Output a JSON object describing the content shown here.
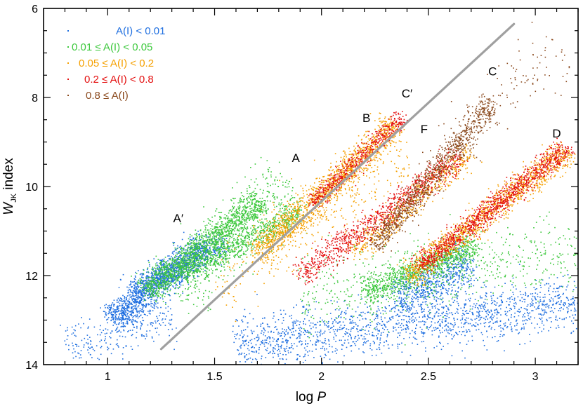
{
  "chart_data": {
    "type": "scatter",
    "title": "",
    "xlabel": "log P",
    "xlabel_main": "log",
    "xlabel_var": "P",
    "ylabel": "W_JK index",
    "ylabel_main": "W",
    "ylabel_sub": "JK",
    "ylabel_suffix": " index",
    "xlim": [
      0.7,
      3.2
    ],
    "ylim": [
      14,
      6
    ],
    "y_inverted": true,
    "x_ticks": [
      1,
      1.5,
      2,
      2.5,
      3
    ],
    "x_tick_labels": [
      "1",
      "1.5",
      "2",
      "2.5",
      "3"
    ],
    "y_ticks": [
      6,
      8,
      10,
      12,
      14
    ],
    "y_tick_labels": [
      "6",
      "8",
      "10",
      "12",
      "14"
    ],
    "legend_position": "top-left",
    "series": [
      {
        "name": "A(I) < 0.01",
        "color": "#1f6fe0"
      },
      {
        "name": "0.01 ≤ A(I) < 0.05",
        "color": "#3cc83c"
      },
      {
        "name": "0.05 ≤ A(I) < 0.2",
        "color": "#f5a000"
      },
      {
        "name": "0.2 ≤ A(I) < 0.8",
        "color": "#e41010"
      },
      {
        "name": "0.8 ≤ A(I)",
        "color": "#8b4a1e"
      }
    ],
    "sequences": [
      {
        "label": "A′",
        "x": 1.33,
        "y": 10.8
      },
      {
        "label": "A",
        "x": 1.88,
        "y": 9.45
      },
      {
        "label": "B",
        "x": 2.21,
        "y": 8.55
      },
      {
        "label": "C′",
        "x": 2.4,
        "y": 8.0
      },
      {
        "label": "F",
        "x": 2.48,
        "y": 8.8
      },
      {
        "label": "C",
        "x": 2.8,
        "y": 7.5
      },
      {
        "label": "D",
        "x": 3.1,
        "y": 8.9
      }
    ],
    "clouds": [
      {
        "series": 0,
        "x0": 1.02,
        "y0": 13.0,
        "x1": 1.45,
        "y1": 11.3,
        "width": 0.65,
        "n": 1300
      },
      {
        "series": 0,
        "x0": 1.1,
        "y0": 12.4,
        "x1": 1.55,
        "y1": 11.2,
        "width": 0.55,
        "n": 500
      },
      {
        "series": 0,
        "x0": 1.6,
        "y0": 13.5,
        "x1": 3.2,
        "y1": 12.6,
        "width": 1.1,
        "n": 1700
      },
      {
        "series": 0,
        "x0": 2.35,
        "y0": 12.5,
        "x1": 2.7,
        "y1": 11.7,
        "width": 0.8,
        "n": 600
      },
      {
        "series": 0,
        "x0": 0.8,
        "y0": 13.6,
        "x1": 1.3,
        "y1": 12.9,
        "width": 0.9,
        "n": 250
      },
      {
        "series": 1,
        "x0": 1.17,
        "y0": 12.35,
        "x1": 1.72,
        "y1": 10.3,
        "width": 0.6,
        "n": 1400
      },
      {
        "series": 1,
        "x0": 1.35,
        "y0": 12.0,
        "x1": 1.9,
        "y1": 10.55,
        "width": 0.5,
        "n": 700
      },
      {
        "series": 1,
        "x0": 1.3,
        "y0": 12.3,
        "x1": 1.85,
        "y1": 9.9,
        "width": 1.4,
        "n": 500
      },
      {
        "series": 1,
        "x0": 2.2,
        "y0": 12.4,
        "x1": 2.72,
        "y1": 11.3,
        "width": 0.6,
        "n": 900
      },
      {
        "series": 1,
        "x0": 1.9,
        "y0": 12.5,
        "x1": 3.2,
        "y1": 11.4,
        "width": 1.5,
        "n": 600
      },
      {
        "series": 2,
        "x0": 1.7,
        "y0": 11.5,
        "x1": 2.35,
        "y1": 8.6,
        "width": 0.6,
        "n": 1400
      },
      {
        "series": 2,
        "x0": 2.15,
        "y0": 11.5,
        "x1": 2.7,
        "y1": 9.2,
        "width": 0.5,
        "n": 500
      },
      {
        "series": 2,
        "x0": 2.4,
        "y0": 12.0,
        "x1": 3.15,
        "y1": 9.2,
        "width": 0.55,
        "n": 1200
      },
      {
        "series": 2,
        "x0": 1.5,
        "y0": 12.3,
        "x1": 2.4,
        "y1": 9.4,
        "width": 1.4,
        "n": 300
      },
      {
        "series": 3,
        "x0": 1.95,
        "y0": 10.4,
        "x1": 2.38,
        "y1": 8.4,
        "width": 0.35,
        "n": 550
      },
      {
        "series": 3,
        "x0": 1.9,
        "y0": 12.0,
        "x1": 2.65,
        "y1": 9.3,
        "width": 0.5,
        "n": 900
      },
      {
        "series": 3,
        "x0": 2.45,
        "y0": 11.8,
        "x1": 3.15,
        "y1": 9.1,
        "width": 0.45,
        "n": 1100
      },
      {
        "series": 4,
        "x0": 2.25,
        "y0": 11.3,
        "x1": 2.8,
        "y1": 8.1,
        "width": 0.5,
        "n": 1000
      },
      {
        "series": 4,
        "x0": 2.6,
        "y0": 9.0,
        "x1": 3.1,
        "y1": 6.8,
        "width": 1.2,
        "n": 120
      }
    ],
    "fit_line": {
      "color": "#a0a0a0",
      "x": [
        1.25,
        2.9
      ],
      "y": [
        13.65,
        6.35
      ]
    }
  }
}
